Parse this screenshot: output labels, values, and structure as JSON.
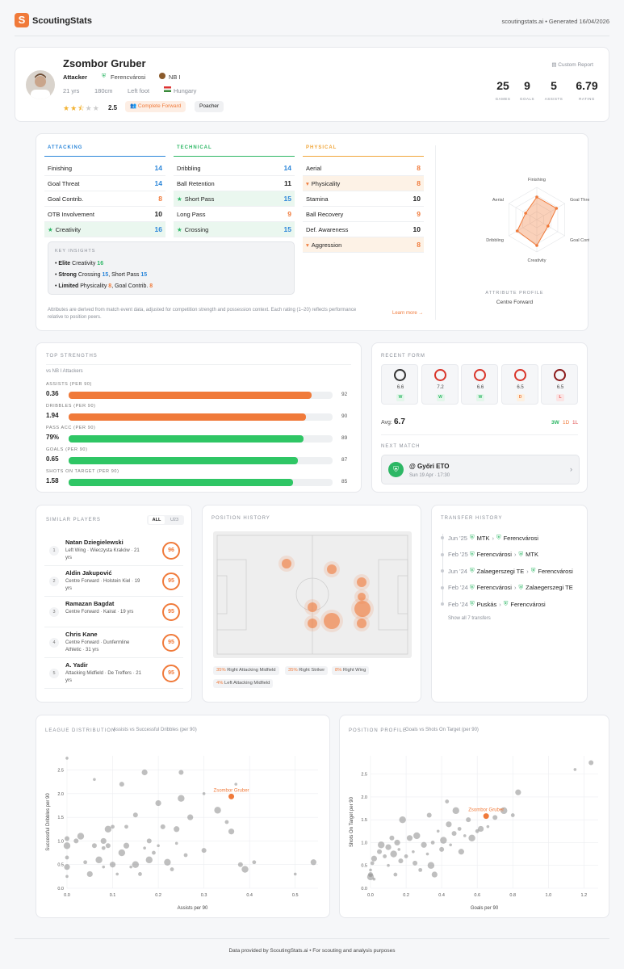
{
  "header": {
    "brand": "ScoutingStats",
    "meta": "scoutingstats.ai • Generated 16/04/2026"
  },
  "player": {
    "name": "Zsombor Gruber",
    "position": "Attacker",
    "club": "Ferencvárosi",
    "league": "NB I",
    "age": "21 yrs",
    "height": "180cm",
    "foot": "Left foot",
    "nation": "Hungary",
    "stars": 2.5,
    "rating_text": "2.5",
    "tag1": "Complete Forward",
    "tag2": "Poacher",
    "custom": "Custom Report",
    "stats": [
      {
        "v": "25",
        "l": "GAMES"
      },
      {
        "v": "9",
        "l": "GOALS"
      },
      {
        "v": "5",
        "l": "ASSISTS"
      },
      {
        "v": "6.79",
        "l": "RATING"
      }
    ]
  },
  "attributes": {
    "attacking": {
      "title": "ATTACKING",
      "items": [
        {
          "n": "Finishing",
          "v": "14"
        },
        {
          "n": "Goal Threat",
          "v": "14"
        },
        {
          "n": "Goal Contrib.",
          "v": "8"
        },
        {
          "n": "OTB Involvement",
          "v": "10"
        },
        {
          "n": "Creativity",
          "v": "16"
        }
      ]
    },
    "technical": {
      "title": "TECHNICAL",
      "items": [
        {
          "n": "Dribbling",
          "v": "14"
        },
        {
          "n": "Ball Retention",
          "v": "11"
        },
        {
          "n": "Short Pass",
          "v": "15"
        },
        {
          "n": "Long Pass",
          "v": "9"
        },
        {
          "n": "Crossing",
          "v": "15"
        }
      ]
    },
    "physical": {
      "title": "PHYSICAL",
      "items": [
        {
          "n": "Aerial",
          "v": "8"
        },
        {
          "n": "Physicality",
          "v": "8"
        },
        {
          "n": "Stamina",
          "v": "10"
        },
        {
          "n": "Ball Recovery",
          "v": "9"
        },
        {
          "n": "Def. Awareness",
          "v": "10"
        },
        {
          "n": "Aggression",
          "v": "8"
        }
      ]
    },
    "insights_title": "KEY INSIGHTS",
    "insights": [
      {
        "a": "Elite",
        "b": "Creativity",
        "c": "16"
      },
      {
        "a": "Strong",
        "b": "Crossing",
        "c": "15",
        "d": ", Short Pass",
        "e": "15"
      },
      {
        "a": "Limited",
        "b": "Physicality",
        "c": "8",
        "d": ", Goal Contrib.",
        "e": "8"
      }
    ],
    "footnote": "Attributes are derived from match event data, adjusted for competition strength and possession context. Each rating (1–20) reflects performance relative to position peers.",
    "learn": "Learn more →",
    "radar_labels": [
      "Finishing",
      "Goal Threat",
      "Goal Contrib.",
      "Creativity",
      "Dribbling",
      "Aerial"
    ],
    "radar_values": [
      14,
      14,
      8,
      16,
      14,
      8
    ],
    "profile_title": "ATTRIBUTE PROFILE",
    "profile_role": "Centre Forward"
  },
  "strengths": {
    "title": "TOP STRENGTHS",
    "sub": "vs NB I Attackers",
    "items": [
      {
        "l": "ASSISTS (PER 90)",
        "v": "0.36",
        "p": 92,
        "c": "#f07a3a"
      },
      {
        "l": "DRIBBLES (PER 90)",
        "v": "1.94",
        "p": 90,
        "c": "#f07a3a"
      },
      {
        "l": "PASS ACC (PER 90)",
        "v": "79%",
        "p": 89,
        "c": "#2fc665"
      },
      {
        "l": "GOALS (PER 90)",
        "v": "0.65",
        "p": 87,
        "c": "#2fc665"
      },
      {
        "l": "SHOTS ON TARGET (PER 90)",
        "v": "1.58",
        "p": 85,
        "c": "#2fc665"
      }
    ]
  },
  "form": {
    "title": "RECENT FORM",
    "games": [
      {
        "r": "6.6",
        "res": "W"
      },
      {
        "r": "7.2",
        "res": "W"
      },
      {
        "r": "6.6",
        "res": "W"
      },
      {
        "r": "6.5",
        "res": "D"
      },
      {
        "r": "6.5",
        "res": "L"
      }
    ],
    "avg_label": "Avg:",
    "avg": "6.7",
    "w": "3W",
    "d": "1D",
    "l": "1L",
    "next_title": "NEXT MATCH",
    "next_team": "@ Győri ETO",
    "next_date": "Sun 19 Apr · 17:30"
  },
  "similar": {
    "title": "SIMILAR PLAYERS",
    "tab_all": "ALL",
    "tab_u23": "U23",
    "players": [
      {
        "i": "1",
        "n": "Natan Dziegielewski",
        "d1": "Left Wing · Wieczysta Kraków · 21",
        "d2": "yrs",
        "s": "96"
      },
      {
        "i": "2",
        "n": "Aldin Jakupović",
        "d1": "Centre Forward · Holstein Kiel · 19",
        "d2": "yrs",
        "s": "95"
      },
      {
        "i": "3",
        "n": "Ramazan Bagdat",
        "d1": "Centre Forward · Kairat · 19 yrs",
        "d2": "",
        "s": "95"
      },
      {
        "i": "4",
        "n": "Chris Kane",
        "d1": "Centre Forward · Dunfermline",
        "d2": "Athletic · 31 yrs",
        "s": "95"
      },
      {
        "i": "5",
        "n": "A. Yadir",
        "d1": "Attacking Midfield · De Treffers · 21",
        "d2": "yrs",
        "s": "95"
      }
    ]
  },
  "position_history": {
    "title": "POSITION HISTORY",
    "tags": [
      {
        "p": "35%",
        "n": "Right Attacking Midfield"
      },
      {
        "p": "35%",
        "n": "Right Striker"
      },
      {
        "p": "8%",
        "n": "Right Wing"
      },
      {
        "p": "4%",
        "n": "Left Attacking Midfield"
      }
    ]
  },
  "transfers": {
    "title": "TRANSFER HISTORY",
    "items": [
      {
        "d": "Jun '25",
        "f": "MTK",
        "t": "Ferencvárosi"
      },
      {
        "d": "Feb '25",
        "f": "Ferencvárosi",
        "t": "MTK"
      },
      {
        "d": "Jun '24",
        "f": "Zalaegerszegi TE",
        "t": "Ferencvárosi"
      },
      {
        "d": "Feb '24",
        "f": "Ferencvárosi",
        "t": "Zalaegerszegi TE"
      },
      {
        "d": "Feb '24",
        "f": "Puskás",
        "t": "Ferencvárosi"
      }
    ],
    "more": "Show all 7 transfers"
  },
  "chart_data": [
    {
      "type": "scatter",
      "title": "LEAGUE DISTRIBUTION",
      "subtitle": "Assists vs Successful Dribbles (per 90)",
      "xlabel": "Assists per 90",
      "ylabel": "Successful Dribbles per 90",
      "xlim": [
        0,
        0.55
      ],
      "ylim": [
        0,
        2.8
      ],
      "xticks": [
        "0.0",
        "0.1",
        "0.2",
        "0.3",
        "0.4",
        "0.5"
      ],
      "yticks": [
        "0.0",
        "0.5",
        "1.0",
        "1.5",
        "2.0",
        "2.5"
      ],
      "highlight": {
        "name": "Zsombor Gruber",
        "x": 0.36,
        "y": 1.94
      },
      "points": [
        [
          0,
          2.75
        ],
        [
          0,
          1.05
        ],
        [
          0,
          0.9
        ],
        [
          0,
          0.65
        ],
        [
          0,
          0.45
        ],
        [
          0,
          0.25
        ],
        [
          0.02,
          1.0
        ],
        [
          0.03,
          1.1
        ],
        [
          0.04,
          0.55
        ],
        [
          0.05,
          0.3
        ],
        [
          0.06,
          2.3
        ],
        [
          0.06,
          0.9
        ],
        [
          0.07,
          0.6
        ],
        [
          0.08,
          0.85
        ],
        [
          0.08,
          1.0
        ],
        [
          0.08,
          0.45
        ],
        [
          0.09,
          0.9
        ],
        [
          0.09,
          1.25
        ],
        [
          0.1,
          1.3
        ],
        [
          0.1,
          0.5
        ],
        [
          0.11,
          0.3
        ],
        [
          0.12,
          2.2
        ],
        [
          0.12,
          0.75
        ],
        [
          0.13,
          1.3
        ],
        [
          0.13,
          0.9
        ],
        [
          0.14,
          0.45
        ],
        [
          0.15,
          1.55
        ],
        [
          0.15,
          0.5
        ],
        [
          0.16,
          0.3
        ],
        [
          0.17,
          2.45
        ],
        [
          0.17,
          0.85
        ],
        [
          0.18,
          1.0
        ],
        [
          0.18,
          0.6
        ],
        [
          0.19,
          0.75
        ],
        [
          0.2,
          1.8
        ],
        [
          0.2,
          0.9
        ],
        [
          0.21,
          1.3
        ],
        [
          0.22,
          0.55
        ],
        [
          0.23,
          0.4
        ],
        [
          0.24,
          1.25
        ],
        [
          0.24,
          0.95
        ],
        [
          0.25,
          2.45
        ],
        [
          0.25,
          1.9
        ],
        [
          0.26,
          0.7
        ],
        [
          0.27,
          1.5
        ],
        [
          0.3,
          2.0
        ],
        [
          0.3,
          0.8
        ],
        [
          0.33,
          1.65
        ],
        [
          0.35,
          1.4
        ],
        [
          0.36,
          1.2
        ],
        [
          0.37,
          2.2
        ],
        [
          0.38,
          0.5
        ],
        [
          0.39,
          0.4
        ],
        [
          0.41,
          0.55
        ],
        [
          0.54,
          0.55
        ],
        [
          0.5,
          0.3
        ]
      ]
    },
    {
      "type": "scatter",
      "title": "POSITION PROFILE",
      "subtitle": "Goals vs Shots On Target (per 90)",
      "xlabel": "Goals per 90",
      "ylabel": "Shots On Target per 90",
      "xlim": [
        0,
        1.28
      ],
      "ylim": [
        0,
        2.9
      ],
      "xticks": [
        "0.0",
        "0.2",
        "0.4",
        "0.6",
        "0.8",
        "1.0",
        "1.2"
      ],
      "yticks": [
        "0.0",
        "0.5",
        "1.0",
        "1.5",
        "2.0",
        "2.5"
      ],
      "highlight": {
        "name": "Zsombor Gruber",
        "x": 0.65,
        "y": 1.58
      },
      "points": [
        [
          0,
          0.4
        ],
        [
          0,
          0.3
        ],
        [
          0,
          0.25
        ],
        [
          0.01,
          0.55
        ],
        [
          0.02,
          0.65
        ],
        [
          0.02,
          0.2
        ],
        [
          0.05,
          0.8
        ],
        [
          0.06,
          0.95
        ],
        [
          0.08,
          0.7
        ],
        [
          0.1,
          0.9
        ],
        [
          0.1,
          0.5
        ],
        [
          0.12,
          1.1
        ],
        [
          0.13,
          0.75
        ],
        [
          0.14,
          0.3
        ],
        [
          0.15,
          1.0
        ],
        [
          0.16,
          0.85
        ],
        [
          0.17,
          0.6
        ],
        [
          0.18,
          1.5
        ],
        [
          0.2,
          0.7
        ],
        [
          0.22,
          1.1
        ],
        [
          0.24,
          0.8
        ],
        [
          0.25,
          0.55
        ],
        [
          0.26,
          1.15
        ],
        [
          0.28,
          0.4
        ],
        [
          0.3,
          0.95
        ],
        [
          0.32,
          0.75
        ],
        [
          0.33,
          1.6
        ],
        [
          0.34,
          0.5
        ],
        [
          0.35,
          1.0
        ],
        [
          0.36,
          0.3
        ],
        [
          0.38,
          1.25
        ],
        [
          0.4,
          0.85
        ],
        [
          0.41,
          1.05
        ],
        [
          0.43,
          1.9
        ],
        [
          0.44,
          1.4
        ],
        [
          0.45,
          0.95
        ],
        [
          0.47,
          1.2
        ],
        [
          0.48,
          1.7
        ],
        [
          0.5,
          1.3
        ],
        [
          0.51,
          0.8
        ],
        [
          0.53,
          1.15
        ],
        [
          0.55,
          1.5
        ],
        [
          0.57,
          1.1
        ],
        [
          0.6,
          1.25
        ],
        [
          0.62,
          1.3
        ],
        [
          0.66,
          1.35
        ],
        [
          0.7,
          1.55
        ],
        [
          0.75,
          1.7
        ],
        [
          0.8,
          1.6
        ],
        [
          0.83,
          2.1
        ],
        [
          1.15,
          2.6
        ],
        [
          1.24,
          2.75
        ]
      ]
    }
  ],
  "footer": "Data provided by ScoutingStats.ai • For scouting and analysis purposes"
}
